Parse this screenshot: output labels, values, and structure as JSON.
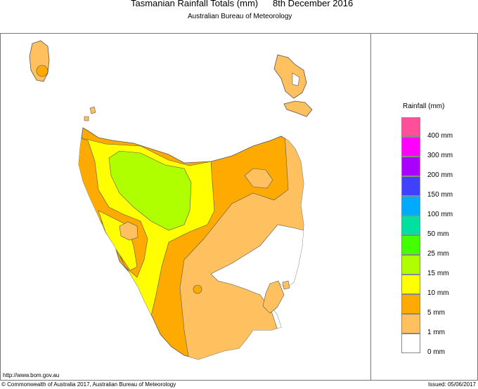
{
  "header": {
    "title": "Tasmanian Rainfall Totals (mm)",
    "date": "8th December 2016",
    "subtitle": "Australian Bureau of Meteorology"
  },
  "legend": {
    "title": "Rainfall (mm)",
    "bins": [
      {
        "color": "#ff4f9a"
      },
      {
        "color": "#ff00ff",
        "label": "400 mm"
      },
      {
        "color": "#aa00ff",
        "label": "300 mm"
      },
      {
        "color": "#4040ff",
        "label": "200 mm"
      },
      {
        "color": "#00aaff",
        "label": "150 mm"
      },
      {
        "color": "#00e0a0",
        "label": "100 mm"
      },
      {
        "color": "#44ff00",
        "label": "50 mm"
      },
      {
        "color": "#b0ff00",
        "label": "25 mm"
      },
      {
        "color": "#ffff00",
        "label": "15 mm"
      },
      {
        "color": "#ffaa00",
        "label": "10 mm"
      },
      {
        "color": "#ffc060",
        "label": "5 mm"
      },
      {
        "color": "#ffffff",
        "label": "1 mm"
      }
    ],
    "bottom_label": "0 mm"
  },
  "footer": {
    "url": "http://www.bom.gov.au",
    "copyright": "© Commonwealth of Australia 2017, Australian Bureau of Meteorology",
    "issued": "Issued: 05/06/2017"
  }
}
